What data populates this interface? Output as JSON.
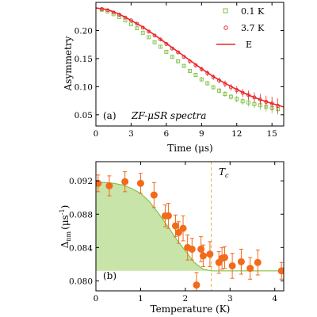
{
  "colors": {
    "green": "#7cc242",
    "red": "#e8252a",
    "orange": "#f26a1b",
    "fill": "#c9e4a8",
    "tc_line": "#f0b43c"
  },
  "chart_data": [
    {
      "type": "scatter",
      "panel": "(a)",
      "annotation": "ZF-μSR spectra",
      "xlabel": "Time (μs)",
      "ylabel": "Asymmetry",
      "xlim": [
        0,
        16
      ],
      "ylim": [
        0.03,
        0.25
      ],
      "xticks": [
        0,
        3,
        6,
        9,
        12,
        15
      ],
      "xtick_labels": [
        "0",
        "3",
        "6",
        "9",
        "12",
        "15"
      ],
      "yticks": [
        0.05,
        0.1,
        0.15,
        0.2
      ],
      "ytick_labels": [
        "0.05",
        "0.10",
        "0.15",
        "0.20"
      ],
      "legend_position": "top-right",
      "series": [
        {
          "name": "0.1 K",
          "marker": "open-square",
          "color": "green",
          "x": [
            0.5,
            1.0,
            1.5,
            2.0,
            2.5,
            3.0,
            3.5,
            4.0,
            4.5,
            5.0,
            5.5,
            6.0,
            6.5,
            7.0,
            7.5,
            8.0,
            8.5,
            9.0,
            9.5,
            10.0,
            10.5,
            11.0,
            11.5,
            12.0,
            12.5,
            13.0,
            13.5,
            14.0,
            14.5,
            15.0,
            15.5
          ],
          "y": [
            0.237,
            0.234,
            0.229,
            0.224,
            0.218,
            0.211,
            0.204,
            0.196,
            0.188,
            0.179,
            0.171,
            0.162,
            0.153,
            0.145,
            0.137,
            0.128,
            0.121,
            0.113,
            0.106,
            0.099,
            0.093,
            0.087,
            0.082,
            0.078,
            0.074,
            0.072,
            0.069,
            0.067,
            0.064,
            0.062,
            0.06
          ],
          "yerr": [
            0.001,
            0.001,
            0.001,
            0.001,
            0.001,
            0.001,
            0.002,
            0.002,
            0.002,
            0.002,
            0.002,
            0.002,
            0.003,
            0.003,
            0.003,
            0.003,
            0.003,
            0.004,
            0.004,
            0.004,
            0.005,
            0.005,
            0.005,
            0.006,
            0.006,
            0.007,
            0.007,
            0.008,
            0.008,
            0.009,
            0.01
          ]
        },
        {
          "name": "3.7 K",
          "marker": "open-circle",
          "color": "red",
          "x": [
            0.5,
            1.0,
            1.5,
            2.0,
            2.5,
            3.0,
            3.5,
            4.0,
            4.5,
            5.0,
            5.5,
            6.0,
            6.5,
            7.0,
            7.5,
            8.0,
            8.5,
            9.0,
            9.5,
            10.0,
            10.5,
            11.0,
            11.5,
            12.0,
            12.5,
            13.0,
            13.5,
            14.0,
            14.5,
            15.0,
            15.5
          ],
          "y": [
            0.238,
            0.236,
            0.232,
            0.228,
            0.223,
            0.218,
            0.212,
            0.205,
            0.198,
            0.191,
            0.184,
            0.176,
            0.168,
            0.161,
            0.153,
            0.145,
            0.138,
            0.131,
            0.124,
            0.117,
            0.111,
            0.105,
            0.099,
            0.094,
            0.089,
            0.085,
            0.081,
            0.077,
            0.073,
            0.07,
            0.066
          ],
          "yerr": [
            0.001,
            0.001,
            0.001,
            0.001,
            0.001,
            0.001,
            0.002,
            0.002,
            0.002,
            0.002,
            0.002,
            0.003,
            0.003,
            0.003,
            0.003,
            0.004,
            0.004,
            0.004,
            0.005,
            0.005,
            0.005,
            0.006,
            0.006,
            0.007,
            0.007,
            0.008,
            0.009,
            0.01,
            0.011,
            0.012,
            0.013
          ]
        },
        {
          "name": "E",
          "marker": "line",
          "color": "red",
          "x": [
            0,
            1,
            2,
            3,
            4,
            5,
            6,
            7,
            8,
            9,
            10,
            11,
            12,
            13,
            14,
            15,
            16
          ],
          "y": [
            0.24,
            0.237,
            0.229,
            0.218,
            0.206,
            0.192,
            0.177,
            0.162,
            0.147,
            0.132,
            0.118,
            0.106,
            0.095,
            0.085,
            0.077,
            0.07,
            0.064
          ]
        }
      ]
    },
    {
      "type": "scatter",
      "panel": "(b)",
      "xlabel": "Temperature (K)",
      "ylabel": "Δ",
      "ylabel_sub": "nm",
      "ylabel_unit": "(μs",
      "ylabel_unit_sup": "-1",
      "ylabel_unit_end": ")",
      "xlim": [
        0,
        4.2
      ],
      "ylim": [
        0.0788,
        0.0943
      ],
      "xticks": [
        0,
        1,
        2,
        3,
        4
      ],
      "xtick_labels": [
        "0",
        "1",
        "2",
        "3",
        "4"
      ],
      "yticks": [
        0.08,
        0.084,
        0.088,
        0.092
      ],
      "ytick_labels": [
        "0.080",
        "0.084",
        "0.088",
        "0.092"
      ],
      "tc": 2.58,
      "tc_label": "T",
      "tc_label_sub": "c",
      "series": [
        {
          "marker": "filled-circle",
          "color": "orange",
          "x": [
            0.05,
            0.3,
            0.65,
            1.0,
            1.3,
            1.55,
            1.62,
            1.78,
            1.85,
            1.95,
            2.05,
            2.15,
            2.25,
            2.35,
            2.4,
            2.55,
            2.75,
            2.82,
            2.88,
            3.05,
            3.25,
            3.45,
            3.62,
            4.15
          ],
          "y": [
            0.0917,
            0.0914,
            0.0919,
            0.0917,
            0.0903,
            0.0878,
            0.0878,
            0.0866,
            0.0858,
            0.0863,
            0.084,
            0.0838,
            0.0795,
            0.0838,
            0.083,
            0.0832,
            0.0822,
            0.0827,
            0.0828,
            0.0818,
            0.0823,
            0.0815,
            0.0822,
            0.0812
          ],
          "yerr": [
            0.001,
            0.0012,
            0.0012,
            0.0012,
            0.0015,
            0.0013,
            0.0015,
            0.0013,
            0.0013,
            0.0015,
            0.0015,
            0.0013,
            0.0015,
            0.0015,
            0.0013,
            0.0015,
            0.0013,
            0.0013,
            0.0013,
            0.0015,
            0.0015,
            0.0013,
            0.0015,
            0.001
          ]
        },
        {
          "marker": "line-fill",
          "color": "green",
          "x": [
            0,
            0.2,
            0.4,
            0.6,
            0.8,
            1.0,
            1.2,
            1.4,
            1.6,
            1.8,
            2.0,
            2.2,
            2.4,
            2.58,
            4.2
          ],
          "y": [
            0.0918,
            0.0918,
            0.0917,
            0.0915,
            0.0911,
            0.0905,
            0.0895,
            0.0881,
            0.0866,
            0.085,
            0.0836,
            0.0822,
            0.0814,
            0.0812,
            0.0812
          ]
        }
      ]
    }
  ]
}
